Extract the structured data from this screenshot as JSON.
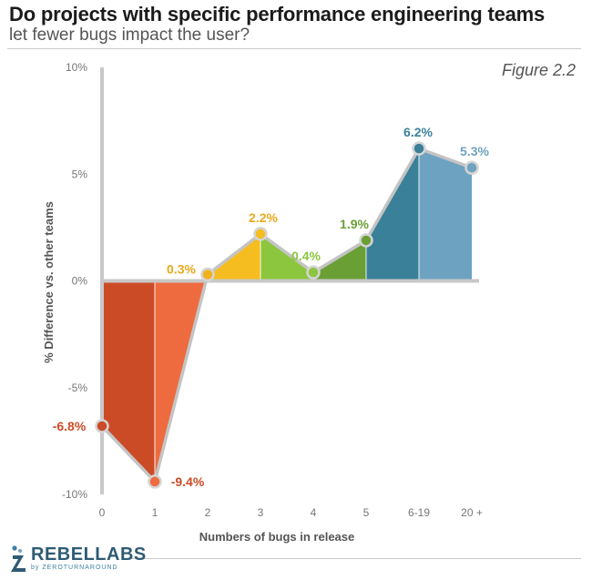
{
  "title": "Do projects with specific performance engineering teams",
  "subtitle": "let fewer bugs impact the user?",
  "figure_label": "Figure 2.2",
  "logo": {
    "name": "REBELLABS",
    "byline": "by ZEROTURNAROUND"
  },
  "chart_data": {
    "type": "area",
    "xlabel": "Numbers of bugs in release",
    "ylabel": "% Difference vs. other teams",
    "categories": [
      "0",
      "1",
      "2",
      "3",
      "4",
      "5",
      "6-19",
      "20 +"
    ],
    "y_ticks": [
      "10%",
      "5%",
      "0%",
      "-5%",
      "-10%"
    ],
    "ylim": [
      -10,
      10
    ],
    "grid": false,
    "points": [
      {
        "x": "0",
        "y": -6.8,
        "label": "-6.8%",
        "color": "#cc4b27"
      },
      {
        "x": "1",
        "y": -9.4,
        "label": "-9.4%",
        "color": "#ee6b3f"
      },
      {
        "x": "2",
        "y": 0.3,
        "label": "0.3%",
        "color": "#f0b21e"
      },
      {
        "x": "3",
        "y": 2.2,
        "label": "2.2%",
        "color": "#f5bd1f"
      },
      {
        "x": "4",
        "y": 0.4,
        "label": "0.4%",
        "color": "#8cc63f"
      },
      {
        "x": "5",
        "y": 1.9,
        "label": "1.9%",
        "color": "#6a9f36"
      },
      {
        "x": "6-19",
        "y": 6.2,
        "label": "6.2%",
        "color": "#3b8099"
      },
      {
        "x": "20 +",
        "y": 5.3,
        "label": "5.3%",
        "color": "#6ea2c1"
      }
    ],
    "segment_colors": [
      "#cc4b27",
      "#ee6b3f",
      "#f5bd1f",
      "#8cc63f",
      "#6a9f36",
      "#3b8099",
      "#6ea2c1"
    ],
    "label_colors": {
      "neg": "#cc4b27",
      "yellow": "#e8a91c",
      "green_light": "#8cc63f",
      "green_dark": "#6a9f36",
      "blue": "#3b8099"
    }
  }
}
